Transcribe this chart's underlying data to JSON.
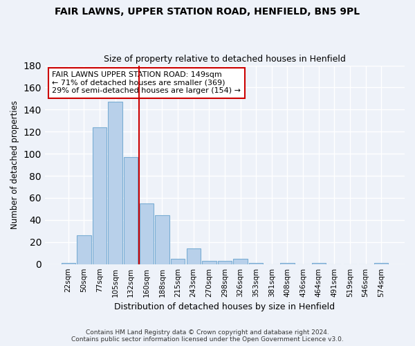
{
  "title_line1": "FAIR LAWNS, UPPER STATION ROAD, HENFIELD, BN5 9PL",
  "title_line2": "Size of property relative to detached houses in Henfield",
  "xlabel": "Distribution of detached houses by size in Henfield",
  "ylabel": "Number of detached properties",
  "categories": [
    "22sqm",
    "50sqm",
    "77sqm",
    "105sqm",
    "132sqm",
    "160sqm",
    "188sqm",
    "215sqm",
    "243sqm",
    "270sqm",
    "298sqm",
    "326sqm",
    "353sqm",
    "381sqm",
    "408sqm",
    "436sqm",
    "464sqm",
    "491sqm",
    "519sqm",
    "546sqm",
    "574sqm"
  ],
  "values": [
    1,
    26,
    124,
    147,
    97,
    55,
    44,
    5,
    14,
    3,
    3,
    5,
    1,
    0,
    1,
    0,
    1,
    0,
    0,
    0,
    1
  ],
  "bar_color": "#b8d0ea",
  "bar_edge_color": "#7aadd4",
  "vline_x": 4.5,
  "vline_color": "#cc0000",
  "annotation_text": "FAIR LAWNS UPPER STATION ROAD: 149sqm\n← 71% of detached houses are smaller (369)\n29% of semi-detached houses are larger (154) →",
  "annotation_box_color": "#ffffff",
  "annotation_box_edge": "#cc0000",
  "ylim": [
    0,
    180
  ],
  "background_color": "#eef2f9",
  "grid_color": "#ffffff",
  "footer_line1": "Contains HM Land Registry data © Crown copyright and database right 2024.",
  "footer_line2": "Contains public sector information licensed under the Open Government Licence v3.0."
}
